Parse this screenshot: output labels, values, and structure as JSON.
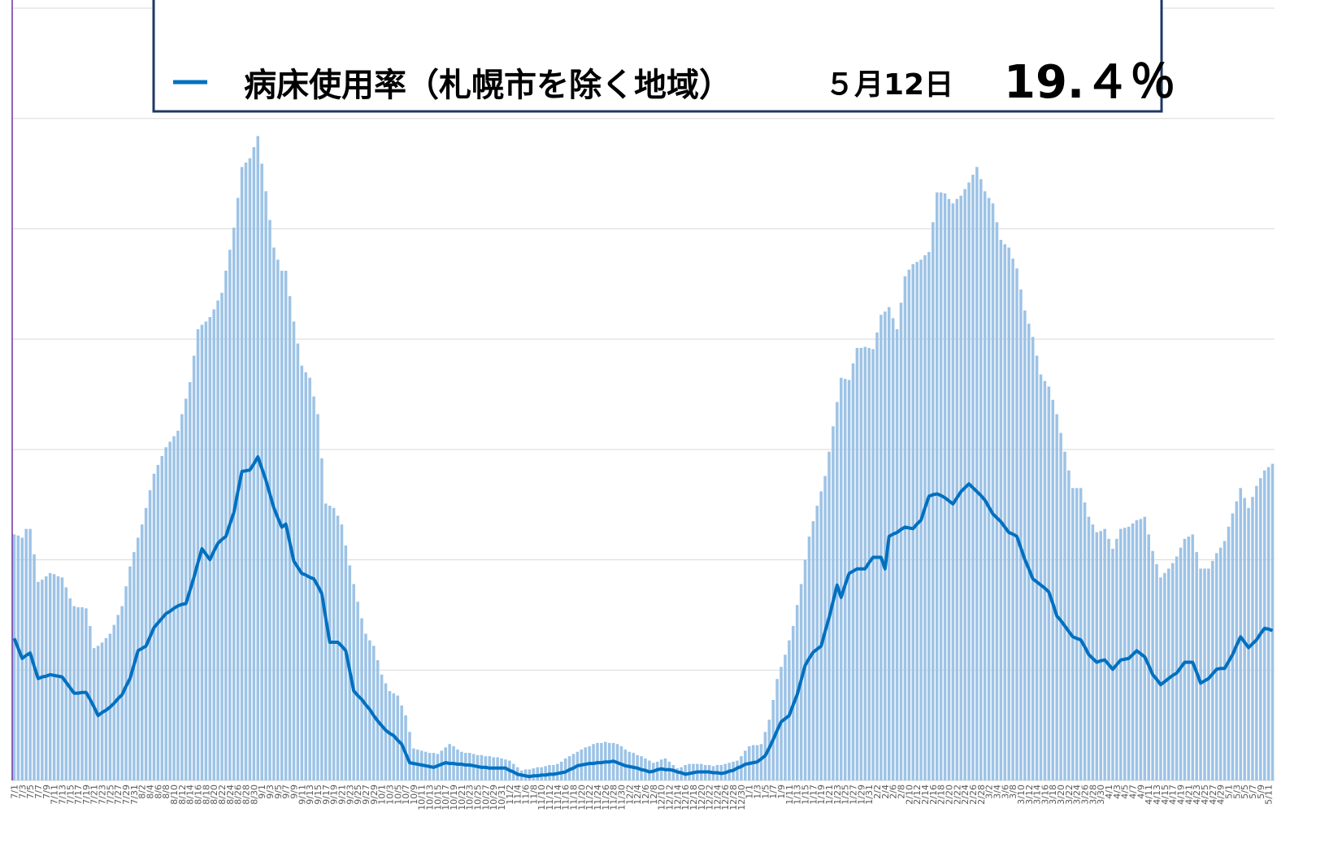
{
  "chart_data": {
    "type": "bar_line",
    "annotations": [
      "５月12日",
      "19.４％"
    ],
    "categories": [
      "7/1",
      null,
      "7/3",
      null,
      "7/5",
      null,
      "7/7",
      null,
      "7/9",
      null,
      "7/11",
      null,
      "7/13",
      null,
      "7/15",
      null,
      "7/17",
      null,
      "7/19",
      null,
      "7/21",
      null,
      "7/23",
      null,
      "7/25",
      null,
      "7/27",
      null,
      "7/29",
      null,
      "7/31",
      null,
      "8/2",
      null,
      "8/4",
      null,
      "8/6",
      null,
      "8/8",
      null,
      "8/10",
      null,
      "8/12",
      null,
      "8/14",
      null,
      "8/16",
      null,
      "8/18",
      null,
      "8/20",
      null,
      "8/22",
      null,
      "8/24",
      null,
      "8/26",
      null,
      "8/28",
      null,
      "8/30",
      null,
      "9/1",
      null,
      "9/3",
      null,
      "9/5",
      null,
      "9/7",
      null,
      "9/9",
      null,
      "9/11",
      null,
      "9/13",
      null,
      "9/15",
      null,
      "9/17",
      null,
      "9/19",
      null,
      "9/21",
      null,
      "9/23",
      null,
      "9/25",
      null,
      "9/27",
      null,
      "9/29",
      null,
      "10/1",
      null,
      "10/3",
      null,
      "10/5",
      null,
      "10/7",
      null,
      "10/9",
      null,
      "10/11",
      null,
      "10/13",
      null,
      "10/15",
      null,
      "10/17",
      null,
      "10/19",
      null,
      "10/21",
      null,
      "10/23",
      null,
      "10/25",
      null,
      "10/27",
      null,
      "10/29",
      null,
      "10/31",
      null,
      "11/2",
      null,
      "11/4",
      null,
      "11/6",
      null,
      "11/8",
      null,
      "11/10",
      null,
      "11/12",
      null,
      "11/14",
      null,
      "11/16",
      null,
      "11/18",
      null,
      "11/20",
      null,
      "11/22",
      null,
      "11/24",
      null,
      "11/26",
      null,
      "11/28",
      null,
      "11/30",
      null,
      "12/2",
      null,
      "12/4",
      null,
      "12/6",
      null,
      "12/8",
      null,
      "12/10",
      null,
      "12/12",
      null,
      "12/14",
      null,
      "12/16",
      null,
      "12/18",
      null,
      "12/20",
      null,
      "12/22",
      null,
      "12/24",
      null,
      "12/26",
      null,
      "12/28",
      null,
      "12/30",
      null,
      "1/1",
      null,
      "1/3",
      null,
      "1/5",
      null,
      "1/7",
      null,
      "1/9",
      null,
      "1/11",
      null,
      "1/13",
      null,
      "1/15",
      null,
      "1/17",
      null,
      "1/19",
      null,
      "1/21",
      null,
      "1/23",
      null,
      "1/25",
      null,
      "1/27",
      null,
      "1/29",
      null,
      "1/31",
      null,
      "2/2",
      null,
      "2/4",
      null,
      "2/6",
      null,
      "2/8",
      null,
      "2/10",
      null,
      "2/12",
      null,
      "2/14",
      null,
      "2/16",
      null,
      "2/18",
      null,
      "2/20",
      null,
      "2/22",
      null,
      "2/24",
      null,
      "2/26",
      null,
      "2/28",
      null,
      "3/2",
      null,
      "3/4",
      null,
      "3/6",
      null,
      "3/8",
      null,
      "3/10",
      null,
      "3/12",
      null,
      "3/14",
      null,
      "3/16",
      null,
      "3/18",
      null,
      "3/20",
      null,
      "3/22",
      null,
      "3/24",
      null,
      "3/26",
      null,
      "3/28",
      null,
      "3/30",
      null,
      "4/1",
      null,
      "4/3",
      null,
      "4/5",
      null,
      "4/7",
      null,
      "4/9",
      null,
      "4/11",
      null,
      "4/13",
      null,
      "4/15",
      null,
      "4/17",
      null,
      "4/19",
      null,
      "4/21",
      null,
      "4/23",
      null,
      "4/25",
      null,
      "4/27",
      null,
      "4/29",
      null,
      "5/1",
      null,
      "5/3",
      null,
      "5/5",
      null,
      "5/7",
      null,
      "5/9",
      null,
      "5/11",
      null
    ],
    "series": [
      {
        "color": "#9dc3e6",
        "values": [
          223,
          222,
          220,
          228,
          228,
          205,
          180,
          182,
          185,
          188,
          187,
          185,
          184,
          175,
          165,
          158,
          157,
          157,
          156,
          140,
          120,
          122,
          125,
          129,
          133,
          141,
          150,
          158,
          176,
          194,
          207,
          220,
          232,
          247,
          263,
          278,
          286,
          294,
          302,
          307,
          312,
          317,
          332,
          346,
          361,
          385,
          409,
          413,
          416,
          420,
          427,
          435,
          442,
          462,
          481,
          501,
          528,
          556,
          560,
          564,
          574,
          584,
          559,
          534,
          508,
          483,
          472,
          462,
          462,
          439,
          416,
          396,
          376,
          370,
          365,
          348,
          332,
          292,
          251,
          249,
          247,
          240,
          232,
          213,
          195,
          178,
          162,
          147,
          133,
          127,
          122,
          109,
          96,
          88,
          81,
          79,
          77,
          68,
          59,
          44,
          29,
          28,
          27,
          26,
          25,
          25,
          24,
          27,
          30,
          33,
          31,
          28,
          26,
          25,
          25,
          24,
          23,
          23,
          22,
          22,
          21,
          21,
          20,
          19,
          18,
          15,
          12,
          9,
          10,
          10,
          11,
          12,
          12,
          13,
          14,
          14,
          15,
          17,
          20,
          22,
          24,
          26,
          28,
          30,
          31,
          33,
          34,
          34,
          35,
          34,
          34,
          33,
          31,
          28,
          26,
          25,
          23,
          22,
          20,
          18,
          16,
          17,
          19,
          20,
          17,
          14,
          11,
          12,
          14,
          15,
          15,
          15,
          15,
          14,
          14,
          13,
          14,
          14,
          15,
          16,
          17,
          18,
          22,
          27,
          31,
          32,
          32,
          33,
          44,
          55,
          73,
          92,
          103,
          114,
          127,
          140,
          159,
          178,
          200,
          221,
          235,
          249,
          262,
          276,
          298,
          321,
          343,
          365,
          364,
          363,
          378,
          392,
          392,
          393,
          392,
          391,
          406,
          422,
          425,
          429,
          419,
          409,
          433,
          457,
          463,
          468,
          470,
          472,
          476,
          479,
          506,
          533,
          533,
          532,
          527,
          523,
          527,
          530,
          536,
          542,
          549,
          556,
          545,
          534,
          528,
          523,
          506,
          490,
          486,
          483,
          473,
          464,
          445,
          426,
          414,
          402,
          385,
          368,
          362,
          357,
          345,
          332,
          315,
          298,
          281,
          265,
          265,
          265,
          252,
          239,
          232,
          225,
          226,
          228,
          219,
          210,
          219,
          228,
          229,
          230,
          233,
          236,
          237,
          239,
          223,
          208,
          196,
          184,
          188,
          192,
          197,
          203,
          211,
          219,
          221,
          223,
          207,
          192,
          192,
          192,
          199,
          206,
          211,
          217,
          230,
          242,
          253,
          265,
          256,
          247,
          257,
          267,
          274,
          281,
          284,
          287
        ]
      },
      {
        "name": "病床使用率（札幌市を除く地域）",
        "color": "#0070c0",
        "axis": "y2",
        "values": [
          18.4,
          17.1,
          15.8,
          16.2,
          16.5,
          14.8,
          13.2,
          13.4,
          13.5,
          13.7,
          13.6,
          13.5,
          13.4,
          12.7,
          12.0,
          11.3,
          11.3,
          11.4,
          11.4,
          10.5,
          9.5,
          8.4,
          8.8,
          9.1,
          9.5,
          10.0,
          10.6,
          11.1,
          12.2,
          13.2,
          15.0,
          16.8,
          17.1,
          17.4,
          18.6,
          19.8,
          20.4,
          21.0,
          21.6,
          21.9,
          22.3,
          22.6,
          22.8,
          22.9,
          24.6,
          26.3,
          28.2,
          30.0,
          29.3,
          28.6,
          29.7,
          30.7,
          31.2,
          31.6,
          33.2,
          34.7,
          37.4,
          40.0,
          40.1,
          40.2,
          41.0,
          41.9,
          40.4,
          38.9,
          37.1,
          35.3,
          34.0,
          32.8,
          33.2,
          30.8,
          28.4,
          27.6,
          26.8,
          26.6,
          26.3,
          26.1,
          25.2,
          24.2,
          21.0,
          17.9,
          17.9,
          17.9,
          17.4,
          16.8,
          14.2,
          11.6,
          11.0,
          10.5,
          9.8,
          9.2,
          8.4,
          7.7,
          7.1,
          6.5,
          6.1,
          5.8,
          5.2,
          4.7,
          3.5,
          2.3,
          2.2,
          2.1,
          2.0,
          1.9,
          1.8,
          1.7,
          1.9,
          2.1,
          2.3,
          2.2,
          2.2,
          2.1,
          2.1,
          2.0,
          2.0,
          1.9,
          1.8,
          1.7,
          1.7,
          1.6,
          1.6,
          1.6,
          1.6,
          1.6,
          1.3,
          1.1,
          0.8,
          0.7,
          0.6,
          0.5,
          0.6,
          0.6,
          0.7,
          0.7,
          0.8,
          0.8,
          0.9,
          1.0,
          1.1,
          1.4,
          1.6,
          1.9,
          2.0,
          2.1,
          2.2,
          2.2,
          2.3,
          2.3,
          2.4,
          2.4,
          2.5,
          2.3,
          2.1,
          1.9,
          1.8,
          1.7,
          1.6,
          1.4,
          1.3,
          1.1,
          1.2,
          1.4,
          1.5,
          1.4,
          1.4,
          1.3,
          1.1,
          1.0,
          0.8,
          0.9,
          1.0,
          1.1,
          1.1,
          1.1,
          1.1,
          1.0,
          1.0,
          0.9,
          1.0,
          1.2,
          1.3,
          1.6,
          1.8,
          2.1,
          2.2,
          2.3,
          2.4,
          2.8,
          3.2,
          4.2,
          5.3,
          6.5,
          7.6,
          8.0,
          8.4,
          9.8,
          11.1,
          13.0,
          14.9,
          15.8,
          16.6,
          17.0,
          17.4,
          19.3,
          21.1,
          23.2,
          25.3,
          23.7,
          25.3,
          26.8,
          27.1,
          27.4,
          27.4,
          27.4,
          28.2,
          28.9,
          28.9,
          28.9,
          27.4,
          31.6,
          31.9,
          32.1,
          32.5,
          32.8,
          32.7,
          32.6,
          33.2,
          33.7,
          35.3,
          36.8,
          37.0,
          37.1,
          36.9,
          36.6,
          36.2,
          35.8,
          36.6,
          37.4,
          37.9,
          38.4,
          37.9,
          37.4,
          36.9,
          36.3,
          35.4,
          34.5,
          34.0,
          33.5,
          32.8,
          32.1,
          31.9,
          31.6,
          30.1,
          28.6,
          27.4,
          26.1,
          25.7,
          25.3,
          24.9,
          24.4,
          22.9,
          21.3,
          20.7,
          20.0,
          19.3,
          18.6,
          18.4,
          18.2,
          17.3,
          16.3,
          15.8,
          15.3,
          15.5,
          15.6,
          15.0,
          14.4,
          15.0,
          15.6,
          15.7,
          15.8,
          16.3,
          16.8,
          16.4,
          16.0,
          14.9,
          13.7,
          13.1,
          12.4,
          12.8,
          13.2,
          13.6,
          13.9,
          14.6,
          15.3,
          15.3,
          15.3,
          14.0,
          12.6,
          12.9,
          13.2,
          13.8,
          14.4,
          14.5,
          14.5,
          15.4,
          16.3,
          17.5,
          18.6,
          17.9,
          17.2,
          17.7,
          18.2,
          19.0,
          19.7,
          19.6,
          19.4
        ]
      }
    ],
    "ylim": [
      0,
      700
    ],
    "yticks": [
      0,
      100,
      200,
      300,
      400,
      500,
      600,
      700
    ],
    "y2lim": [
      0,
      100
    ],
    "grid": true
  }
}
